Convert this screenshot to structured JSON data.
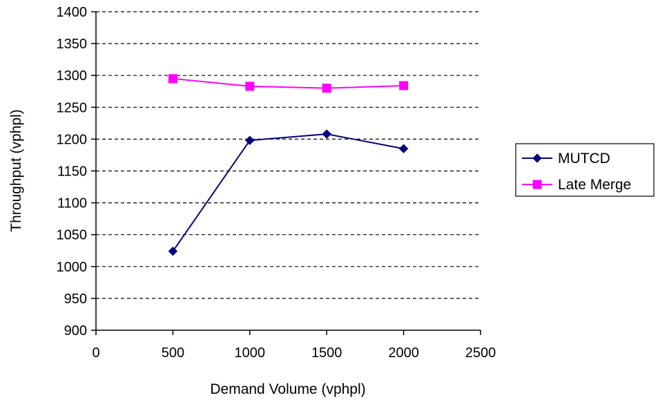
{
  "chart_data": {
    "type": "line",
    "title": "",
    "xlabel": "Demand Volume (vphpl)",
    "ylabel": "Throughput (vphpl)",
    "xlim": [
      0,
      2500
    ],
    "ylim": [
      900,
      1400
    ],
    "x_ticks": [
      0,
      500,
      1000,
      1500,
      2000,
      2500
    ],
    "y_ticks": [
      900,
      950,
      1000,
      1050,
      1100,
      1150,
      1200,
      1250,
      1300,
      1350,
      1400
    ],
    "grid": "horizontal dashed",
    "legend_position": "right",
    "series": [
      {
        "name": "MUTCD",
        "color": "#000080",
        "marker": "diamond",
        "x": [
          500,
          1000,
          1500,
          2000
        ],
        "y": [
          1024,
          1198,
          1208,
          1185
        ]
      },
      {
        "name": "Late Merge",
        "color": "#ff00ff",
        "marker": "square",
        "x": [
          500,
          1000,
          1500,
          2000
        ],
        "y": [
          1295,
          1283,
          1280,
          1284
        ]
      }
    ]
  }
}
